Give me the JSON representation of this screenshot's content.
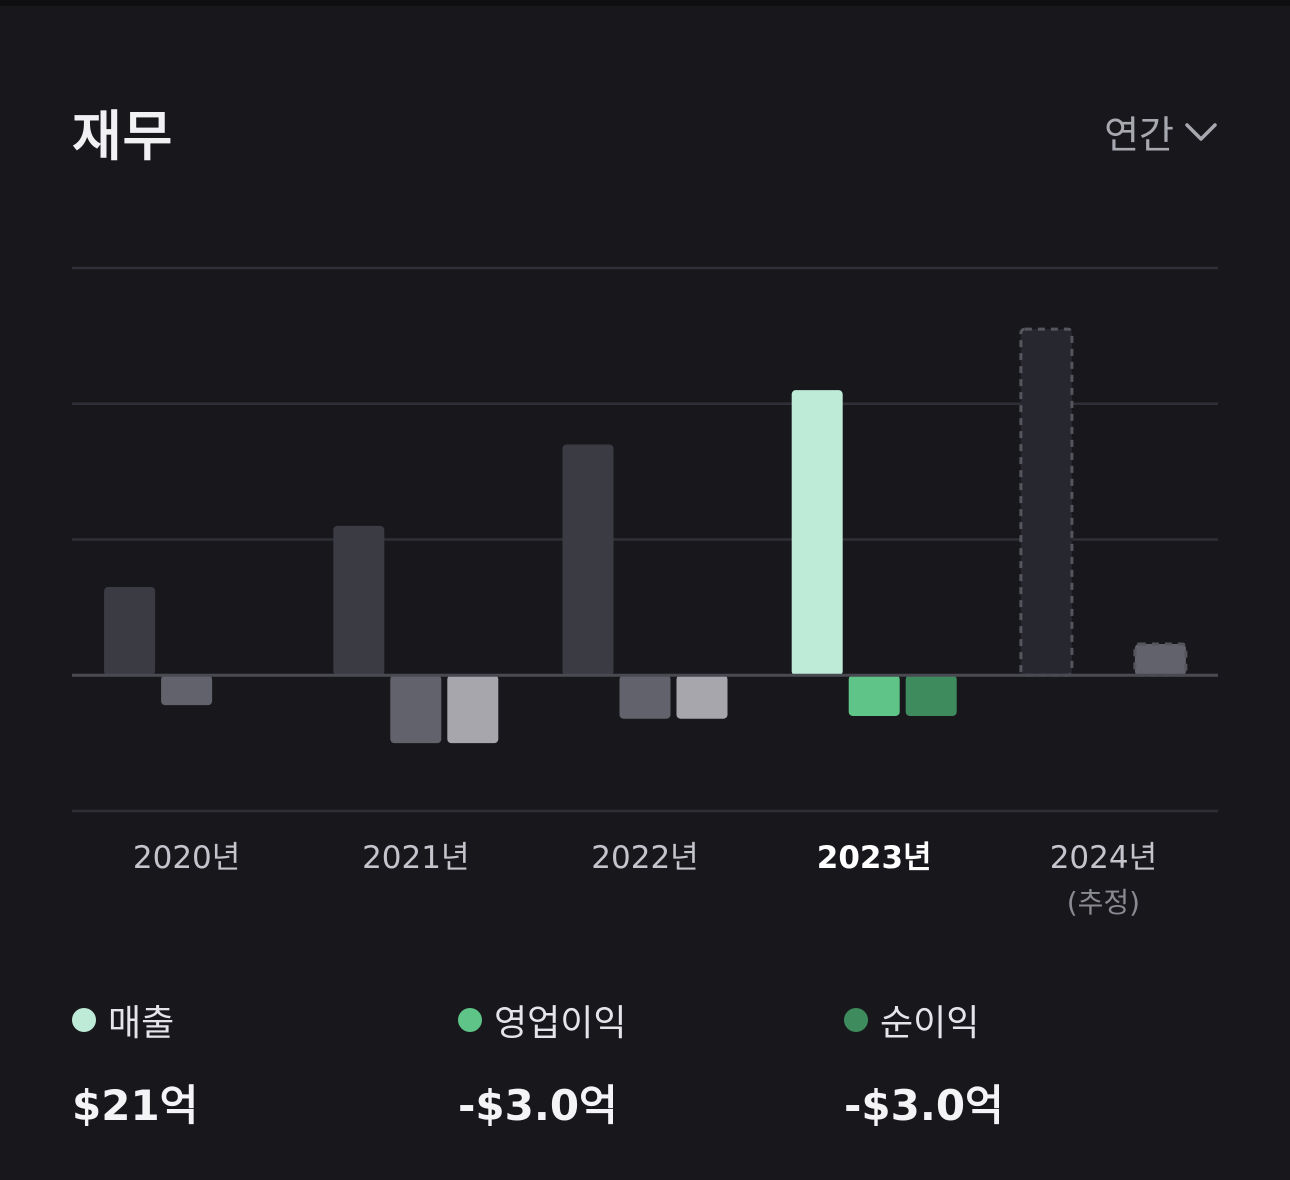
{
  "header": {
    "title": "재무",
    "period_label": "연간"
  },
  "chart_data": {
    "type": "bar",
    "categories": [
      "2020년",
      "2021년",
      "2022년",
      "2023년",
      "2024년"
    ],
    "category_sublabels": [
      "",
      "",
      "",
      "",
      "(추정)"
    ],
    "selected_category": "2023년",
    "estimated_category": "2024년",
    "series": [
      {
        "name": "매출",
        "values": [
          6.5,
          11,
          17,
          21,
          25.5
        ],
        "color": "#bdebd7"
      },
      {
        "name": "영업이익",
        "values": [
          -2.2,
          -5,
          -3.2,
          -3.0,
          null
        ],
        "color": "#5ec488"
      },
      {
        "name": "순이익",
        "values": [
          null,
          -5,
          -3.2,
          -3.0,
          2.3
        ],
        "color": "#3e8c5e"
      }
    ],
    "ylim": [
      -10,
      30
    ],
    "grid": true,
    "colors": {
      "inactive_revenue": "#3b3b44",
      "inactive_operating": "#62626c",
      "inactive_net": "#a6a6ac",
      "estimate_fill": "#272730",
      "estimate_border": "#55555e",
      "estimate_small_fill": "#62626c"
    }
  },
  "legend": [
    {
      "label": "매출",
      "value": "$21억",
      "color": "#bdebd7"
    },
    {
      "label": "영업이익",
      "value": "-$3.0억",
      "color": "#5ec488"
    },
    {
      "label": "순이익",
      "value": "-$3.0억",
      "color": "#3e8c5e"
    }
  ]
}
